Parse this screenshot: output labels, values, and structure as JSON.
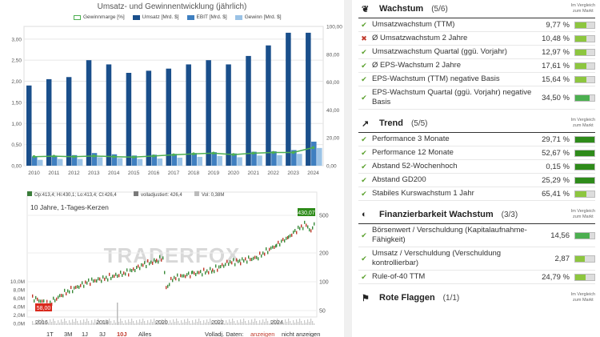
{
  "fundamentals_chart": {
    "title": "Umsatz- und Gewinnentwicklung (jährlich)",
    "legend": [
      {
        "label": "Gewinnmarge [%]",
        "color": "#4caf50",
        "kind": "line"
      },
      {
        "label": "Umsatz [Mrd. $]",
        "color": "#1a4f8b",
        "kind": "bar"
      },
      {
        "label": "EBIT [Mrd. $]",
        "color": "#3f7fc0",
        "kind": "bar"
      },
      {
        "label": "Gewinn [Mrd. $]",
        "color": "#9bc3e6",
        "kind": "bar"
      }
    ],
    "left_ticks": [
      "3,00",
      "2,50",
      "2,00",
      "1,50",
      "1,00",
      "0,50",
      "0,00"
    ],
    "right_ticks": [
      "100,00",
      "80,00",
      "60,00",
      "40,00",
      "20,00",
      "0,00"
    ]
  },
  "price_chart": {
    "ohlc_text": "Op:413,4; Hi:430,1; Lo:413,4; Cl:426,4",
    "adjusted_text": "volladjustiert: 426,4",
    "volume_text": "Vol: 0,38M",
    "subtitle": "10 Jahre, 1-Tages-Kerzen",
    "last_price": "430,07",
    "low_price": "58,00",
    "watermark": "TRADERFOX",
    "right_ticks": [
      "500",
      "200",
      "100",
      "50"
    ],
    "volume_ticks": [
      "10,0M",
      "8,0M",
      "6,0M",
      "4,0M",
      "2,0M",
      "0,0M"
    ],
    "x_labels": [
      "2016",
      "2018",
      "2020",
      "2022",
      "2024"
    ],
    "range_buttons": [
      "1T",
      "3M",
      "1J",
      "3J",
      "10J",
      "Alles"
    ],
    "active_range": "10J",
    "adjust_label": "Volladj. Daten:",
    "adjust_on": "anzeigen",
    "adjust_off": "nicht anzeigen"
  },
  "chart_data": [
    {
      "type": "bar",
      "title": "Umsatz- und Gewinnentwicklung (jährlich)",
      "categories": [
        "2010",
        "2011",
        "2012",
        "2013",
        "2014",
        "2015",
        "2016",
        "2017",
        "2018",
        "2019",
        "2020",
        "2021",
        "2022",
        "2023",
        "2024"
      ],
      "series": [
        {
          "name": "Umsatz [Mrd. $]",
          "values": [
            1.9,
            2.05,
            2.1,
            2.5,
            2.4,
            2.2,
            2.25,
            2.3,
            2.4,
            2.5,
            2.4,
            2.6,
            2.85,
            3.15,
            3.15
          ]
        },
        {
          "name": "EBIT [Mrd. $]",
          "values": [
            0.22,
            0.24,
            0.25,
            0.3,
            0.27,
            0.24,
            0.26,
            0.28,
            0.3,
            0.32,
            0.29,
            0.33,
            0.34,
            0.37,
            0.57
          ]
        },
        {
          "name": "Gewinn [Mrd. $]",
          "values": [
            0.14,
            0.16,
            0.16,
            0.2,
            0.18,
            0.16,
            0.17,
            0.19,
            0.21,
            0.23,
            0.2,
            0.24,
            0.25,
            0.28,
            0.42
          ]
        },
        {
          "name": "Gewinnmarge [%]",
          "axis": "right",
          "values": [
            6.5,
            6.8,
            6.5,
            7.0,
            6.5,
            6.2,
            7.0,
            7.8,
            8.5,
            9.0,
            8.0,
            9.0,
            9.5,
            9.5,
            13.0
          ]
        }
      ],
      "ylim": [
        0,
        3.3
      ],
      "y2lim": [
        0,
        100
      ]
    }
  ],
  "fundamental_panel": {
    "compare_label_1": "Im Vergleich",
    "compare_label_2": "zum Markt",
    "sections": [
      {
        "icon": "sprout-icon",
        "glyph": "❦",
        "title": "Wachstum",
        "count": "(5/6)",
        "rows": [
          {
            "status": "check",
            "label": "Umsatzwachstum (TTM)",
            "value": "9,77 %",
            "level": 0.6,
            "color": "#8dc63f"
          },
          {
            "status": "cross",
            "label": "Ø Umsatzwachstum 2 Jahre",
            "value": "10,48 %",
            "level": 0.6,
            "color": "#8dc63f"
          },
          {
            "status": "check",
            "label": "Umsatzwachstum Quartal (ggü. Vorjahr)",
            "value": "12,97 %",
            "level": 0.6,
            "color": "#8dc63f"
          },
          {
            "status": "check",
            "label": "Ø EPS-Wachstum 2 Jahre",
            "value": "17,61 %",
            "level": 0.6,
            "color": "#8dc63f"
          },
          {
            "status": "check",
            "label": "EPS-Wachstum (TTM) negative Basis",
            "value": "15,64 %",
            "level": 0.6,
            "color": "#8dc63f"
          },
          {
            "status": "check",
            "label": "EPS-Wachstum Quartal (ggü. Vorjahr) negative Basis",
            "value": "34,50 %",
            "level": 0.75,
            "color": "#4caf50"
          }
        ]
      },
      {
        "icon": "trend-icon",
        "glyph": "↗",
        "title": "Trend",
        "count": "(5/5)",
        "rows": [
          {
            "status": "check",
            "label": "Performance 3 Monate",
            "value": "29,71 %",
            "level": 1.0,
            "color": "#2e8b1a"
          },
          {
            "status": "check",
            "label": "Performance 12 Monate",
            "value": "52,67 %",
            "level": 1.0,
            "color": "#2e8b1a"
          },
          {
            "status": "check",
            "label": "Abstand 52-Wochenhoch",
            "value": "0,15 %",
            "level": 1.0,
            "color": "#2e8b1a"
          },
          {
            "status": "check",
            "label": "Abstand GD200",
            "value": "25,29 %",
            "level": 1.0,
            "color": "#2e8b1a"
          },
          {
            "status": "check",
            "label": "Stabiles Kurswachstum 1 Jahr",
            "value": "65,41 %",
            "level": 0.6,
            "color": "#8dc63f"
          }
        ]
      },
      {
        "icon": "shield-icon",
        "glyph": "◐",
        "title": "Finanzierbarkeit Wachstum",
        "count": "(3/3)",
        "rows": [
          {
            "status": "check",
            "label": "Börsenwert / Verschuldung (Kapitalaufnahme-Fähigkeit)",
            "value": "14,56",
            "level": 0.75,
            "color": "#4caf50"
          },
          {
            "status": "check",
            "label": "Umsatz / Verschuldung (Verschuldung kontrollierbar)",
            "value": "2,87",
            "level": 0.5,
            "color": "#8dc63f"
          },
          {
            "status": "check",
            "label": "Rule-of-40 TTM",
            "value": "24,79 %",
            "level": 0.55,
            "color": "#8dc63f"
          }
        ]
      },
      {
        "icon": "flag-icon",
        "glyph": "⚑",
        "title": "Rote Flaggen",
        "count": "(1/1)",
        "rows": []
      }
    ]
  }
}
